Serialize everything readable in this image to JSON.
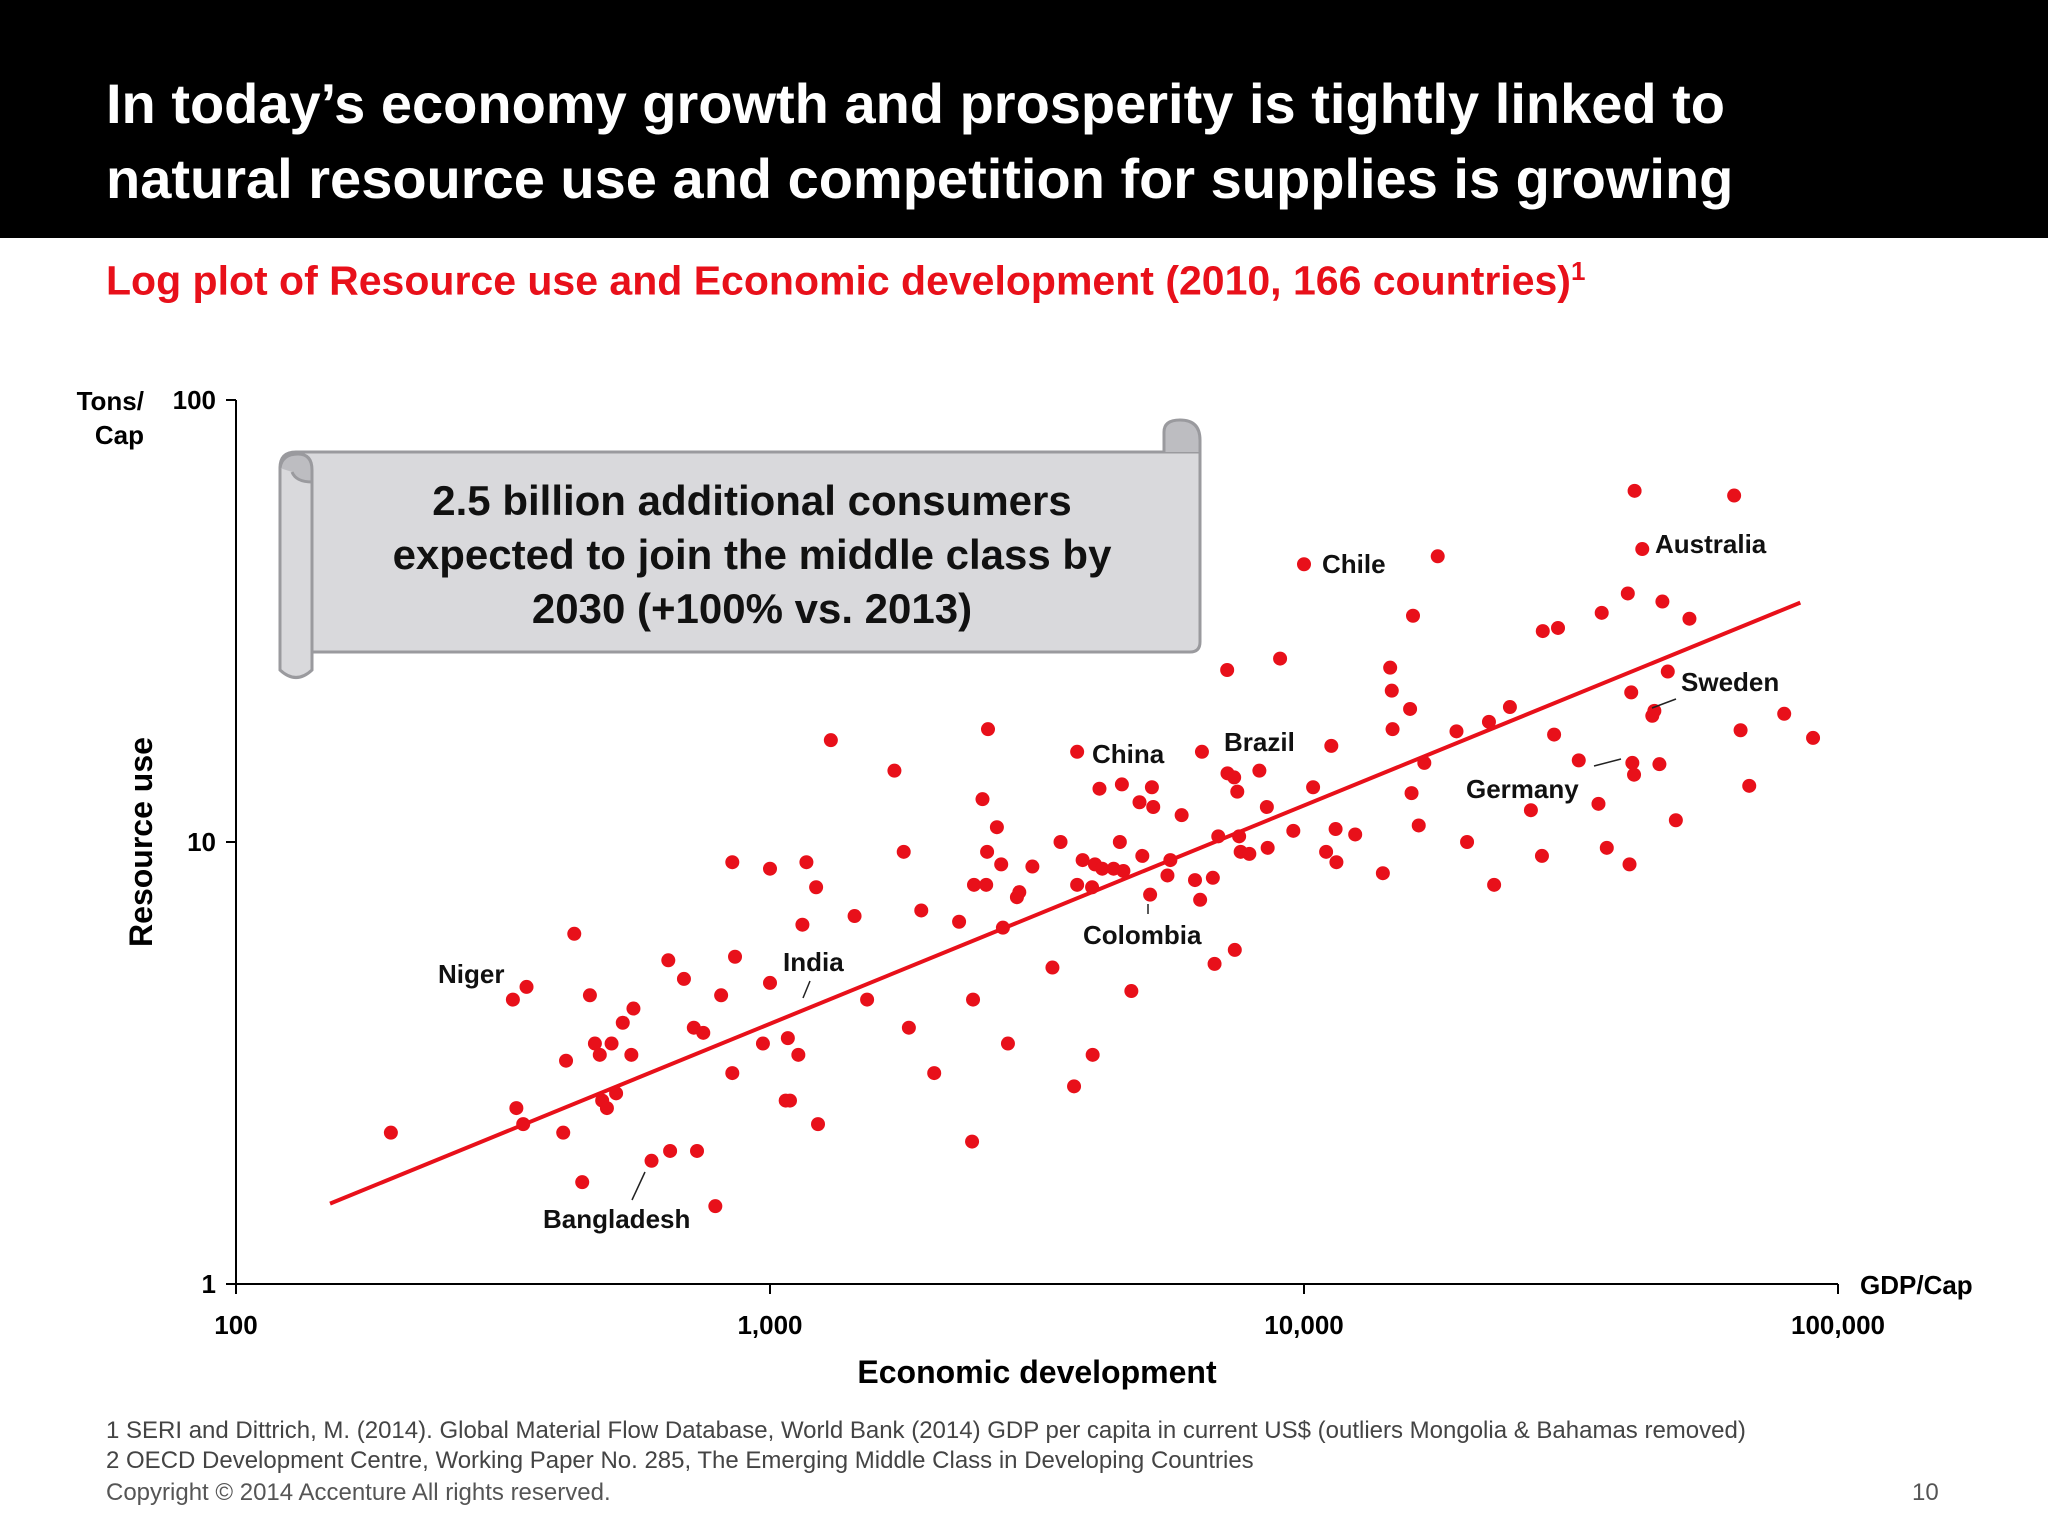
{
  "header": {
    "title_line1": "In today’s economy growth and prosperity is tightly linked to",
    "title_line2": "natural resource use and competition for supplies is growing"
  },
  "subtitle": {
    "text": "Log plot of Resource use and Economic development (2010, 166 countries)",
    "sup": "1"
  },
  "callout": {
    "line1": "2.5 billion additional consumers",
    "line2": "expected to join the middle class by",
    "line3": "2030 (+100% vs. 2013)"
  },
  "footnotes": {
    "note1": "1 SERI and Dittrich, M. (2014). Global Material Flow Database, World Bank (2014) GDP per capita in current US$ (outliers Mongolia & Bahamas removed)",
    "note2": "2 OECD Development Centre, Working Paper No. 285, The Emerging Middle Class in Developing Countries"
  },
  "copyright": "Copyright © 2014 Accenture All rights reserved.",
  "page_number": "10",
  "colors": {
    "accent": "#e8101a",
    "header_bg": "#000000",
    "callout_fill": "#d9d9dc"
  },
  "chart_data": {
    "type": "scatter",
    "x_scale": "log",
    "y_scale": "log",
    "xlim": [
      100,
      100000
    ],
    "ylim": [
      1,
      100
    ],
    "xlabel": "Economic development",
    "ylabel": "Resource use",
    "x_unit": "GDP/Cap",
    "y_unit_line1": "Tons/",
    "y_unit_line2": "Cap",
    "x_ticks": [
      100,
      1000,
      10000,
      100000
    ],
    "x_tick_labels": [
      "100",
      "1,000",
      "10,000",
      "100,000"
    ],
    "y_ticks": [
      1,
      10,
      100
    ],
    "y_tick_labels": [
      "1",
      "10",
      "100"
    ],
    "grid": false,
    "trend_line": [
      [
        150,
        1.52
      ],
      [
        85000,
        34.8
      ]
    ],
    "points": [
      [
        195,
        2.2
      ],
      [
        330,
        4.4
      ],
      [
        335,
        2.5
      ],
      [
        345,
        2.3
      ],
      [
        350,
        4.7
      ],
      [
        410,
        2.2
      ],
      [
        415,
        3.2
      ],
      [
        430,
        6.2
      ],
      [
        445,
        1.7
      ],
      [
        460,
        4.5
      ],
      [
        470,
        3.5
      ],
      [
        480,
        3.3
      ],
      [
        485,
        2.6
      ],
      [
        495,
        2.5
      ],
      [
        505,
        3.5
      ],
      [
        515,
        2.7
      ],
      [
        530,
        3.9
      ],
      [
        550,
        3.3
      ],
      [
        555,
        4.2
      ],
      [
        600,
        1.9
      ],
      [
        645,
        5.4
      ],
      [
        650,
        2.0
      ],
      [
        690,
        4.9
      ],
      [
        720,
        3.8
      ],
      [
        730,
        2.0
      ],
      [
        750,
        3.7
      ],
      [
        790,
        1.5
      ],
      [
        810,
        4.5
      ],
      [
        850,
        3.0
      ],
      [
        850,
        9.0
      ],
      [
        860,
        5.5
      ],
      [
        970,
        3.5
      ],
      [
        1000,
        8.7
      ],
      [
        1000,
        4.8
      ],
      [
        1070,
        2.6
      ],
      [
        1080,
        3.6
      ],
      [
        1090,
        2.6
      ],
      [
        1130,
        3.3
      ],
      [
        1150,
        6.5
      ],
      [
        1170,
        9.0
      ],
      [
        1220,
        7.9
      ],
      [
        1230,
        2.3
      ],
      [
        1300,
        17.0
      ],
      [
        1440,
        6.8
      ],
      [
        1520,
        4.4
      ],
      [
        1710,
        14.5
      ],
      [
        1780,
        9.5
      ],
      [
        1820,
        3.8
      ],
      [
        1920,
        7.0
      ],
      [
        2030,
        3.0
      ],
      [
        2260,
        6.6
      ],
      [
        2390,
        2.1
      ],
      [
        2400,
        4.4
      ],
      [
        2410,
        8.0
      ],
      [
        2500,
        12.5
      ],
      [
        2540,
        8.0
      ],
      [
        2550,
        9.5
      ],
      [
        2560,
        18.0
      ],
      [
        2660,
        10.8
      ],
      [
        2710,
        8.9
      ],
      [
        2730,
        6.4
      ],
      [
        2790,
        3.5
      ],
      [
        2900,
        7.5
      ],
      [
        2930,
        7.7
      ],
      [
        3100,
        8.8
      ],
      [
        3380,
        5.2
      ],
      [
        3500,
        10.0
      ],
      [
        3710,
        2.8
      ],
      [
        3760,
        16.0
      ],
      [
        3760,
        8.0
      ],
      [
        3850,
        9.1
      ],
      [
        4010,
        7.9
      ],
      [
        4020,
        3.3
      ],
      [
        4060,
        8.9
      ],
      [
        4140,
        13.2
      ],
      [
        4190,
        8.7
      ],
      [
        4400,
        8.7
      ],
      [
        4520,
        10.0
      ],
      [
        4560,
        13.5
      ],
      [
        4590,
        8.6
      ],
      [
        4750,
        4.6
      ],
      [
        4920,
        12.3
      ],
      [
        4980,
        9.3
      ],
      [
        5150,
        7.6
      ],
      [
        5190,
        13.3
      ],
      [
        5220,
        12.0
      ],
      [
        5550,
        8.4
      ],
      [
        5620,
        9.1
      ],
      [
        5900,
        11.5
      ],
      [
        6250,
        8.2
      ],
      [
        6390,
        7.4
      ],
      [
        6440,
        16.0
      ],
      [
        6750,
        8.3
      ],
      [
        6800,
        5.3
      ],
      [
        6910,
        10.3
      ],
      [
        7180,
        24.5
      ],
      [
        7190,
        14.3
      ],
      [
        7400,
        14.0
      ],
      [
        7420,
        5.7
      ],
      [
        7500,
        13.0
      ],
      [
        7560,
        10.3
      ],
      [
        7610,
        9.5
      ],
      [
        7900,
        9.4
      ],
      [
        8250,
        14.5
      ],
      [
        8520,
        12.0
      ],
      [
        8550,
        9.7
      ],
      [
        9020,
        26.0
      ],
      [
        9550,
        10.6
      ],
      [
        10000,
        42.5
      ],
      [
        10400,
        13.3
      ],
      [
        11000,
        9.5
      ],
      [
        11250,
        16.5
      ],
      [
        11460,
        10.7
      ],
      [
        11500,
        9.0
      ],
      [
        12470,
        10.4
      ],
      [
        14050,
        8.5
      ],
      [
        14500,
        24.8
      ],
      [
        14600,
        22.0
      ],
      [
        14650,
        18.0
      ],
      [
        15800,
        20.0
      ],
      [
        15900,
        12.9
      ],
      [
        16000,
        32.5
      ],
      [
        16400,
        10.9
      ],
      [
        16800,
        15.1
      ],
      [
        17800,
        44.3
      ],
      [
        19300,
        17.8
      ],
      [
        20200,
        10.0
      ],
      [
        22200,
        18.7
      ],
      [
        22700,
        8.0
      ],
      [
        24300,
        20.2
      ],
      [
        26600,
        11.8
      ],
      [
        27900,
        9.3
      ],
      [
        28000,
        30.0
      ],
      [
        29400,
        17.5
      ],
      [
        29900,
        30.5
      ],
      [
        32700,
        15.3
      ],
      [
        35600,
        12.2
      ],
      [
        36100,
        33.0
      ],
      [
        36900,
        9.7
      ],
      [
        40400,
        36.5
      ],
      [
        40700,
        8.9
      ],
      [
        41000,
        21.8
      ],
      [
        41200,
        15.1
      ],
      [
        41500,
        14.2
      ],
      [
        41600,
        62.3
      ],
      [
        43000,
        46.0
      ],
      [
        44900,
        19.3
      ],
      [
        45300,
        19.8
      ],
      [
        46300,
        15.0
      ],
      [
        46900,
        35.0
      ],
      [
        48000,
        24.3
      ],
      [
        49700,
        11.2
      ],
      [
        52700,
        32.0
      ],
      [
        63900,
        60.8
      ],
      [
        65700,
        17.9
      ],
      [
        68200,
        13.4
      ],
      [
        79300,
        19.5
      ],
      [
        89800,
        17.2
      ]
    ],
    "labels": [
      "Niger",
      "Bangladesh",
      "India",
      "China",
      "Colombia",
      "Brazil",
      "Chile",
      "Germany",
      "Australia",
      "Sweden"
    ]
  }
}
